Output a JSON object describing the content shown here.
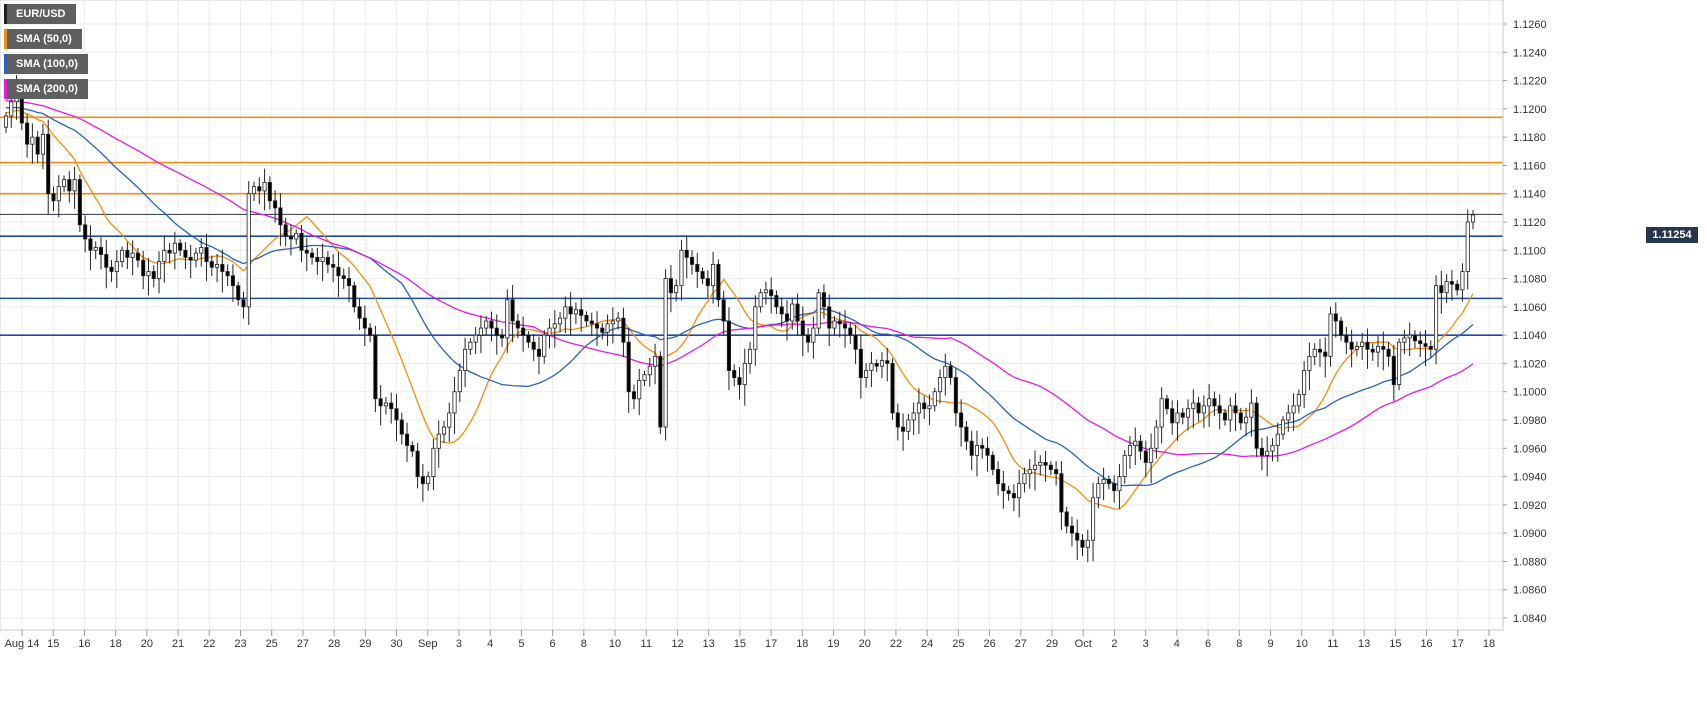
{
  "colors": {
    "sma50": "#f28c16",
    "sma100": "#2a63b8",
    "sma200": "#e31cde",
    "support": "#1f4aa0",
    "resistance": "#f28c16",
    "price_line": "#26364d"
  },
  "legend": [
    {
      "label": "EUR/USD",
      "color": "#222222"
    },
    {
      "label": "SMA (50,0)",
      "color": "#f28c16"
    },
    {
      "label": "SMA (100,0)",
      "color": "#2a63b8"
    },
    {
      "label": "SMA (200,0)",
      "color": "#e31cde"
    }
  ],
  "current_price": "1.11254",
  "chart_data": {
    "type": "candlestick",
    "title": "",
    "ylim": [
      1.084,
      1.127
    ],
    "y_ticks": [
      "1.1260",
      "1.1240",
      "1.1220",
      "1.1200",
      "1.1180",
      "1.1160",
      "1.1140",
      "1.1120",
      "1.1100",
      "1.1080",
      "1.1060",
      "1.1040",
      "1.1020",
      "1.1000",
      "1.0980",
      "1.0960",
      "1.0940",
      "1.0920",
      "1.0900",
      "1.0880",
      "1.0860",
      "1.0840"
    ],
    "x_labels": [
      "Aug 14",
      "15",
      "16",
      "18",
      "20",
      "21",
      "22",
      "23",
      "25",
      "27",
      "28",
      "29",
      "30",
      "Sep",
      "3",
      "4",
      "5",
      "6",
      "8",
      "10",
      "11",
      "12",
      "13",
      "15",
      "17",
      "18",
      "19",
      "20",
      "22",
      "24",
      "25",
      "26",
      "27",
      "29",
      "Oct",
      "2",
      "3",
      "4",
      "6",
      "8",
      "9",
      "10",
      "11",
      "13",
      "15",
      "16",
      "17",
      "18"
    ],
    "horizontal_levels": {
      "resistance": [
        1.1194,
        1.1162,
        1.114
      ],
      "support": [
        1.111,
        1.1066,
        1.104
      ],
      "current": 1.11254
    },
    "close": [
      1.1195,
      1.1205,
      1.1215,
      1.119,
      1.1175,
      1.118,
      1.1168,
      1.1182,
      1.114,
      1.1135,
      1.1145,
      1.115,
      1.1142,
      1.115,
      1.1118,
      1.1108,
      1.11,
      1.1102,
      1.1097,
      1.1088,
      1.1085,
      1.1092,
      1.11,
      1.1095,
      1.1098,
      1.1093,
      1.1082,
      1.1085,
      1.108,
      1.1092,
      1.11,
      1.1098,
      1.1105,
      1.11,
      1.1095,
      1.1093,
      1.1098,
      1.1102,
      1.1092,
      1.1088,
      1.109,
      1.1085,
      1.1082,
      1.1075,
      1.1065,
      1.106,
      1.114,
      1.1145,
      1.1142,
      1.1148,
      1.1135,
      1.113,
      1.1118,
      1.111,
      1.1108,
      1.1112,
      1.11,
      1.1098,
      1.1095,
      1.1092,
      1.1095,
      1.109,
      1.1088,
      1.1082,
      1.108,
      1.1075,
      1.106,
      1.1052,
      1.1045,
      1.104,
      1.0995,
      1.099,
      1.0992,
      1.0988,
      1.098,
      1.097,
      1.0962,
      1.0958,
      1.094,
      1.0935,
      1.094,
      1.096,
      1.097,
      1.0975,
      1.0985,
      1.1,
      1.1015,
      1.103,
      1.1035,
      1.104,
      1.1045,
      1.105,
      1.1045,
      1.104,
      1.1038,
      1.1065,
      1.105,
      1.1045,
      1.104,
      1.1035,
      1.103,
      1.1025,
      1.104,
      1.1045,
      1.1048,
      1.1052,
      1.106,
      1.1055,
      1.1058,
      1.1054,
      1.105,
      1.1048,
      1.1045,
      1.1042,
      1.1048,
      1.105,
      1.1052,
      1.1035,
      1.1,
      1.0995,
      1.1008,
      1.1012,
      1.1018,
      1.1025,
      1.0975,
      1.108,
      1.107,
      1.1075,
      1.11,
      1.1095,
      1.109,
      1.1085,
      1.108,
      1.1075,
      1.109,
      1.1065,
      1.105,
      1.1015,
      1.101,
      1.1005,
      1.102,
      1.103,
      1.106,
      1.107,
      1.1072,
      1.1068,
      1.106,
      1.1055,
      1.105,
      1.1062,
      1.105,
      1.104,
      1.1035,
      1.1045,
      1.107,
      1.106,
      1.1045,
      1.105,
      1.1048,
      1.1045,
      1.104,
      1.103,
      1.101,
      1.1015,
      1.102,
      1.1018,
      1.1022,
      1.102,
      1.0985,
      1.0975,
      1.0972,
      1.098,
      1.0985,
      1.0992,
      1.0988,
      1.099,
      1.1,
      1.101,
      1.1018,
      1.101,
      1.0985,
      1.0975,
      1.0965,
      1.0955,
      1.0962,
      1.096,
      1.0955,
      1.0945,
      1.0935,
      1.093,
      1.0928,
      1.0925,
      1.0935,
      1.0942,
      1.0945,
      1.0948,
      1.095,
      1.0948,
      1.0945,
      1.0942,
      1.0915,
      1.0905,
      1.09,
      1.0895,
      1.089,
      1.0895,
      1.0925,
      1.0935,
      1.0938,
      1.0935,
      1.093,
      1.094,
      1.0955,
      1.0962,
      1.0965,
      1.0958,
      1.095,
      1.096,
      1.0975,
      1.0995,
      1.0988,
      1.0978,
      1.0985,
      1.0982,
      1.0988,
      1.0992,
      1.0985,
      1.099,
      1.0995,
      1.099,
      1.0985,
      1.098,
      1.099,
      1.0985,
      1.0978,
      1.0982,
      1.0992,
      1.096,
      1.0955,
      1.0958,
      1.0962,
      1.097,
      1.098,
      1.0985,
      1.099,
      1.0998,
      1.1015,
      1.1025,
      1.103,
      1.1028,
      1.1025,
      1.1055,
      1.105,
      1.104,
      1.1035,
      1.103,
      1.1032,
      1.1035,
      1.103,
      1.1028,
      1.1032,
      1.103,
      1.1025,
      1.1005,
      1.1035,
      1.1038,
      1.104,
      1.1036,
      1.1034,
      1.1032,
      1.103,
      1.1075,
      1.107,
      1.1078,
      1.1076,
      1.1072,
      1.1085,
      1.112,
      1.1125
    ]
  }
}
